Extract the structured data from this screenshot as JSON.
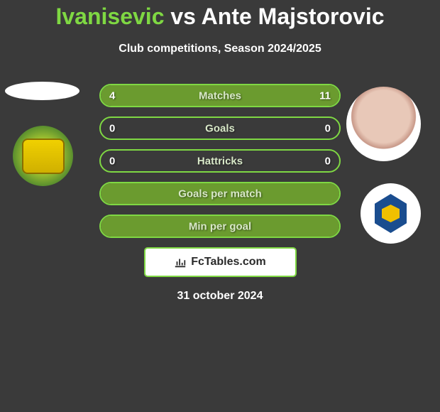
{
  "title": {
    "player1": "Ivanisevic",
    "vs": "vs",
    "player2": "Ante Majstorovic"
  },
  "subtitle": "Club competitions, Season 2024/2025",
  "stats": [
    {
      "label": "Matches",
      "left_val": "4",
      "right_val": "11",
      "left_pct": 27,
      "right_pct": 73
    },
    {
      "label": "Goals",
      "left_val": "0",
      "right_val": "0",
      "left_pct": 0,
      "right_pct": 0
    },
    {
      "label": "Hattricks",
      "left_val": "0",
      "right_val": "0",
      "left_pct": 0,
      "right_pct": 0
    },
    {
      "label": "Goals per match",
      "left_val": "",
      "right_val": "",
      "left_pct": 100,
      "right_pct": 0
    },
    {
      "label": "Min per goal",
      "left_val": "",
      "right_val": "",
      "left_pct": 100,
      "right_pct": 0
    }
  ],
  "branding": {
    "site": "FcTables.com"
  },
  "date": "31 october 2024",
  "colors": {
    "bg": "#3a3a3a",
    "accent": "#7fd843",
    "bar_fill": "#6b9b2f",
    "text": "#ffffff"
  }
}
